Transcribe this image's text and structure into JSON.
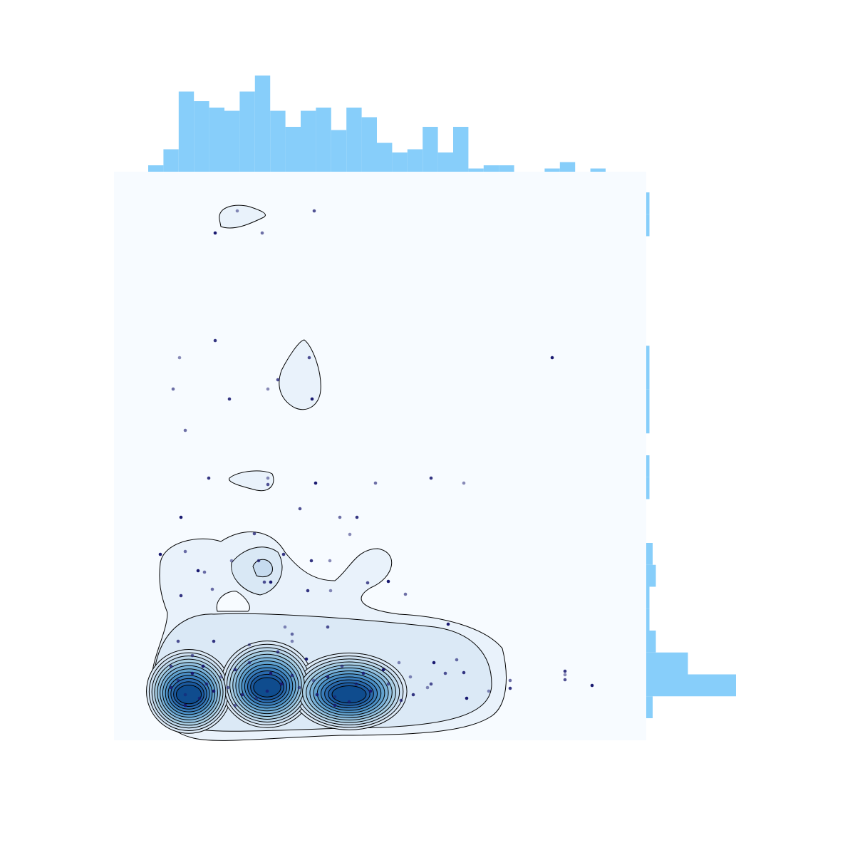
{
  "chart_data": {
    "type": "scatter",
    "color": "#191970",
    "hist_color": "#87cefa",
    "background": "#f7fbff",
    "xlim": [
      0,
      747
    ],
    "ylim": [
      0,
      798
    ],
    "x": [
      173,
      281,
      142,
      208,
      142,
      92,
      274,
      615,
      83,
      162,
      216,
      230,
      278,
      100,
      133,
      216,
      216,
      283,
      367,
      445,
      491,
      261,
      94,
      317,
      341,
      331,
      197,
      65,
      100,
      238,
      165,
      203,
      118,
      127,
      277,
      303,
      211,
      220,
      138,
      272,
      304,
      356,
      385,
      409,
      94,
      240,
      300,
      469,
      250,
      633,
      633,
      633,
      671,
      556,
      556,
      526,
      445,
      449,
      481,
      491,
      416,
      403,
      378,
      340,
      300,
      280,
      250,
      220,
      190,
      170,
      150,
      130,
      110,
      90,
      80,
      100,
      120,
      140,
      160,
      180,
      200,
      215,
      235,
      260,
      285,
      310,
      330,
      360,
      385,
      420,
      440,
      465,
      495,
      110,
      140,
      190,
      230,
      270,
      320,
      350,
      400,
      80,
      100,
      170,
      310,
      250,
      90,
      125
    ],
    "y": [
      743,
      743,
      712,
      712,
      561,
      537,
      537,
      537,
      493,
      479,
      493,
      506,
      479,
      435,
      368,
      368,
      359,
      361,
      361,
      368,
      361,
      325,
      313,
      313,
      313,
      289,
      290,
      261,
      265,
      261,
      252,
      252,
      238,
      236,
      252,
      252,
      222,
      222,
      212,
      210,
      210,
      221,
      223,
      205,
      203,
      159,
      159,
      163,
      149,
      97,
      92,
      85,
      77,
      84,
      73,
      69,
      79,
      109,
      113,
      95,
      89,
      56,
      99,
      79,
      89,
      84,
      91,
      94,
      109,
      99,
      89,
      79,
      94,
      84,
      74,
      64,
      59,
      69,
      74,
      64,
      59,
      69,
      79,
      74,
      64,
      61,
      54,
      69,
      79,
      64,
      74,
      94,
      59,
      119,
      139,
      134,
      124,
      114,
      104,
      94,
      109,
      104,
      49,
      49,
      49,
      139,
      139,
      104
    ],
    "x_hist": {
      "bins": [
        48,
        69.4,
        90.8,
        112.2,
        133.6,
        155,
        176.4,
        197.8,
        219.2,
        240.6,
        262,
        283.4,
        304.8,
        326.2,
        347.6,
        369,
        390.4,
        411.8,
        433.2,
        454.6,
        476,
        497.4,
        518.8,
        540.2,
        561.6,
        583,
        604.4,
        625.8,
        647.2,
        668.6,
        690
      ],
      "counts": [
        2,
        7,
        25,
        22,
        20,
        19,
        25,
        30,
        19,
        14,
        19,
        20,
        13,
        20,
        17,
        9,
        6,
        7,
        14,
        6,
        14,
        1,
        2,
        2,
        0,
        0,
        1,
        3,
        0,
        1
      ],
      "count_lim": [
        0,
        32
      ]
    },
    "y_hist": {
      "bins": [
        31,
        61.75,
        92.5,
        123.25,
        154,
        184.75,
        215.5,
        246.25,
        277,
        307.75,
        338.5,
        369.25,
        400,
        430.75,
        461.5,
        492.25,
        523,
        553.75,
        584.5,
        615.25,
        646,
        676.75,
        707.5,
        738.25,
        769
      ],
      "counts": [
        2,
        28,
        13,
        3,
        1,
        1,
        3,
        2,
        0,
        0,
        1,
        1,
        0,
        1,
        1,
        1,
        1,
        0,
        0,
        0,
        0,
        0,
        1,
        1
      ],
      "count_lim": [
        0,
        32
      ]
    }
  }
}
